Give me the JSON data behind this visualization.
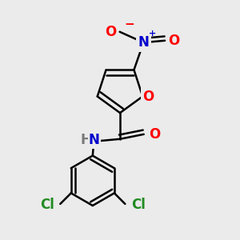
{
  "background_color": "#ebebeb",
  "line_color": "black",
  "line_width": 1.8,
  "atom_colors": {
    "O": "#ff0000",
    "N": "#0000cd",
    "Cl": "#228b22",
    "H": "#7a7a7a"
  },
  "font_size": 12,
  "sup_font_size": 8,
  "figsize": [
    3.0,
    3.0
  ],
  "dpi": 100
}
